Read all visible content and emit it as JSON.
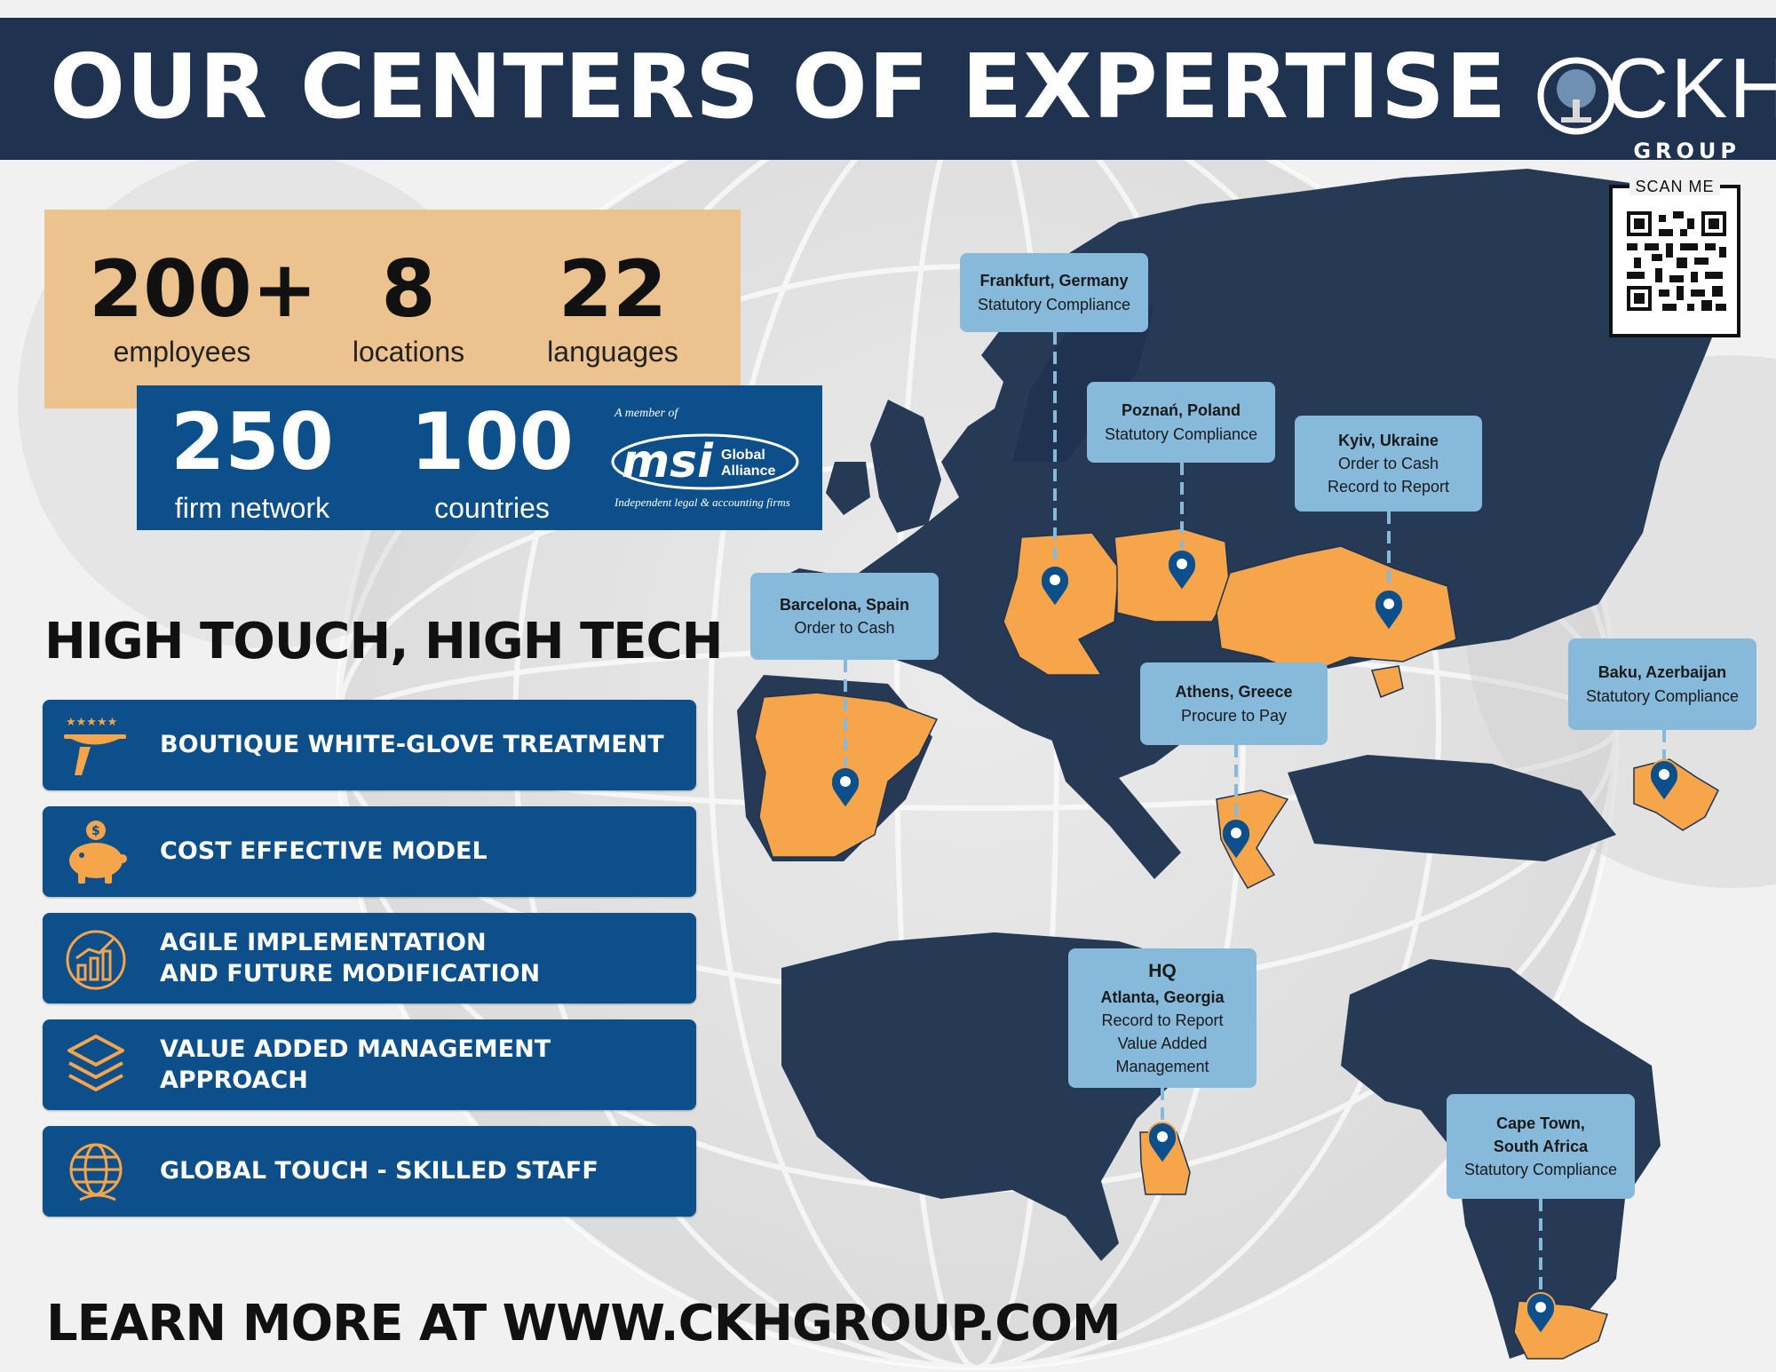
{
  "header": {
    "title": "OUR CENTERS OF EXPERTISE"
  },
  "logo": {
    "text": "CKH",
    "sub": "GROUP"
  },
  "qr": {
    "label": "SCAN ME"
  },
  "stats_top": [
    {
      "num": "200+",
      "label": "employees"
    },
    {
      "num": "8",
      "label": "locations"
    },
    {
      "num": "22",
      "label": "languages"
    }
  ],
  "stats_bottom": [
    {
      "num": "250",
      "label": "firm network"
    },
    {
      "num": "100",
      "label": "countries"
    }
  ],
  "msi": {
    "top": "A member of",
    "word": "msi",
    "ga1": "Global",
    "ga2": "Alliance",
    "bottom": "Independent legal & accounting firms"
  },
  "tagline": "HIGH TOUCH, HIGH TECH",
  "features": [
    {
      "text": "BOUTIQUE WHITE-GLOVE TREATMENT",
      "icon": "serving-tray-icon"
    },
    {
      "text": "COST EFFECTIVE MODEL",
      "icon": "piggy-bank-icon"
    },
    {
      "text": "AGILE IMPLEMENTATION AND FUTURE MODIFICATION",
      "icon": "growth-chart-icon"
    },
    {
      "text": "VALUE ADDED MANAGEMENT APPROACH",
      "icon": "layers-icon"
    },
    {
      "text": "GLOBAL TOUCH - SKILLED STAFF",
      "icon": "globe-icon"
    }
  ],
  "footer": "LEARN MORE AT WWW.CKHGROUP.COM",
  "locations": {
    "frankfurt": {
      "title": "Frankfurt, Germany",
      "lines": [
        "Statutory Compliance"
      ]
    },
    "poznan": {
      "title": "Poznań, Poland",
      "lines": [
        "Statutory Compliance"
      ]
    },
    "kyiv": {
      "title": "Kyiv, Ukraine",
      "lines": [
        "Order to Cash",
        "Record to Report"
      ]
    },
    "barcelona": {
      "title": "Barcelona, Spain",
      "lines": [
        "Order to Cash"
      ]
    },
    "athens": {
      "title": "Athens, Greece",
      "lines": [
        "Procure to Pay"
      ]
    },
    "baku": {
      "title": "Baku, Azerbaijan",
      "lines": [
        "Statutory Compliance"
      ]
    },
    "atlanta": {
      "pre": "HQ",
      "title": "Atlanta, Georgia",
      "lines": [
        "Record to Report",
        "Value Added",
        "Management"
      ]
    },
    "capetown": {
      "title": "Cape Town,",
      "title2": "South Africa",
      "lines": [
        "Statutory Compliance"
      ]
    }
  },
  "colors": {
    "navy": "#1f3350",
    "blue": "#0d4f8b",
    "orange": "#f6a54a",
    "callout": "#86b9da",
    "tan": "#ecc28e"
  }
}
